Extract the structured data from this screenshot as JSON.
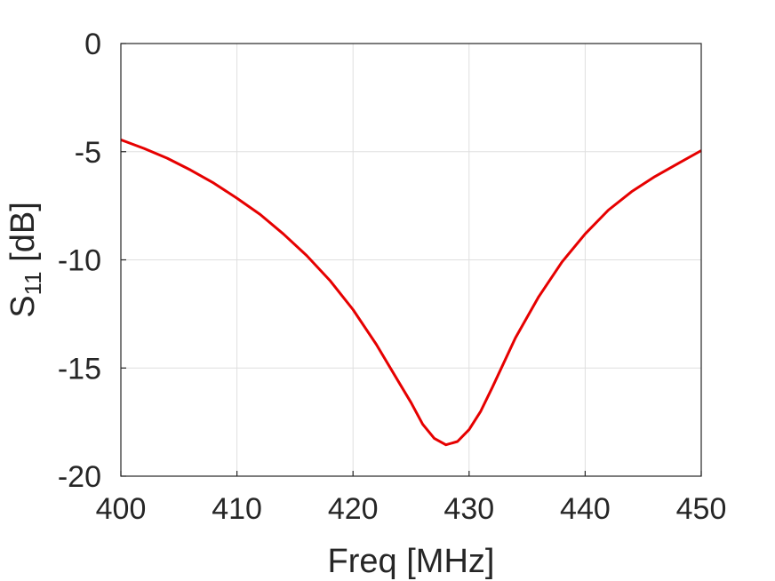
{
  "chart_data": {
    "type": "line",
    "title": "",
    "xlabel": "Freq [MHz]",
    "ylabel": {
      "base": "S",
      "subscript": "11",
      "unit": " [dB]"
    },
    "xlim": [
      400,
      450
    ],
    "ylim": [
      -20,
      0
    ],
    "xticks": [
      400,
      410,
      420,
      430,
      440,
      450
    ],
    "yticks": [
      0,
      -5,
      -10,
      -15,
      -20
    ],
    "xtick_labels": [
      "400",
      "410",
      "420",
      "430",
      "440",
      "450"
    ],
    "ytick_labels": [
      "0",
      "-5",
      "-10",
      "-15",
      "-20"
    ],
    "grid": true,
    "series": [
      {
        "name": "S11",
        "color": "#e60000",
        "x": [
          400,
          402,
          404,
          406,
          408,
          410,
          412,
          414,
          416,
          418,
          420,
          422,
          424,
          425,
          426,
          427,
          428,
          429,
          430,
          431,
          432,
          434,
          436,
          438,
          440,
          442,
          444,
          446,
          448,
          450
        ],
        "y": [
          -4.45,
          -4.85,
          -5.3,
          -5.85,
          -6.45,
          -7.15,
          -7.9,
          -8.8,
          -9.8,
          -10.95,
          -12.3,
          -13.9,
          -15.7,
          -16.6,
          -17.6,
          -18.25,
          -18.55,
          -18.4,
          -17.85,
          -17.0,
          -15.9,
          -13.6,
          -11.7,
          -10.1,
          -8.8,
          -7.7,
          -6.85,
          -6.15,
          -5.55,
          -4.95
        ]
      }
    ]
  }
}
